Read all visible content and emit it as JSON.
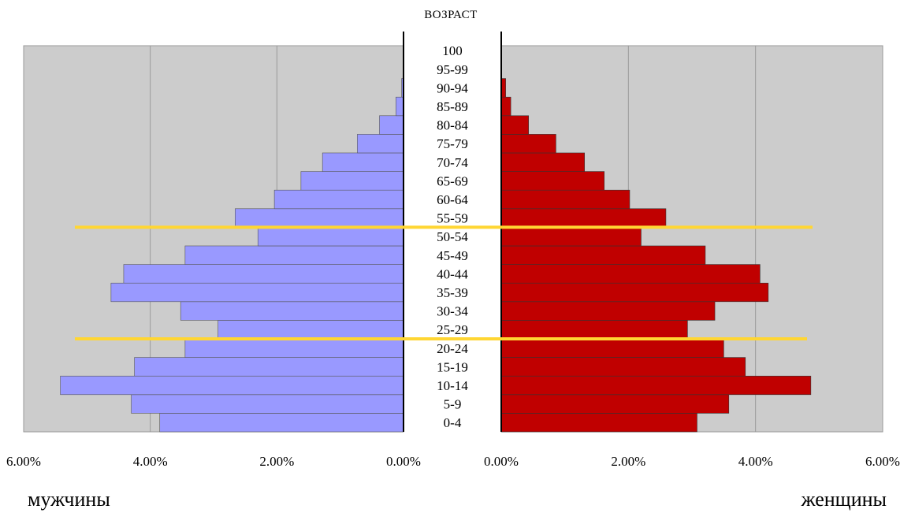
{
  "chart_data": {
    "type": "bar",
    "orientation": "horizontal-population-pyramid",
    "title": "ВОЗРАСТ",
    "left_label": "мужчины",
    "right_label": "женщины",
    "categories": [
      "0-4",
      "5-9",
      "10-14",
      "15-19",
      "20-24",
      "25-29",
      "30-34",
      "35-39",
      "40-44",
      "45-49",
      "50-54",
      "55-59",
      "60-64",
      "65-69",
      "70-74",
      "75-79",
      "80-84",
      "85-89",
      "90-94",
      "95-99",
      "100"
    ],
    "series": [
      {
        "name": "мужчины",
        "color": "#9999ff",
        "values": [
          3.85,
          4.3,
          5.42,
          4.25,
          3.45,
          2.93,
          3.52,
          4.62,
          4.42,
          3.45,
          2.3,
          2.66,
          2.04,
          1.62,
          1.28,
          0.73,
          0.38,
          0.12,
          0.03,
          0,
          0
        ]
      },
      {
        "name": "женщины",
        "color": "#c00000",
        "values": [
          3.08,
          3.58,
          4.87,
          3.84,
          3.5,
          2.93,
          3.36,
          4.2,
          4.07,
          3.21,
          2.2,
          2.59,
          2.02,
          1.62,
          1.31,
          0.86,
          0.43,
          0.15,
          0.07,
          0,
          0
        ]
      }
    ],
    "xlim": [
      0,
      6
    ],
    "x_ticks": [
      "6.00%",
      "4.00%",
      "2.00%",
      "0.00%"
    ],
    "right_x_ticks": [
      "0.00%",
      "2.00%",
      "4.00%",
      "6.00%"
    ],
    "grid": true,
    "highlight_lines": {
      "color": "#ffd633",
      "after_categories": [
        "55-59",
        "25-29"
      ]
    }
  }
}
